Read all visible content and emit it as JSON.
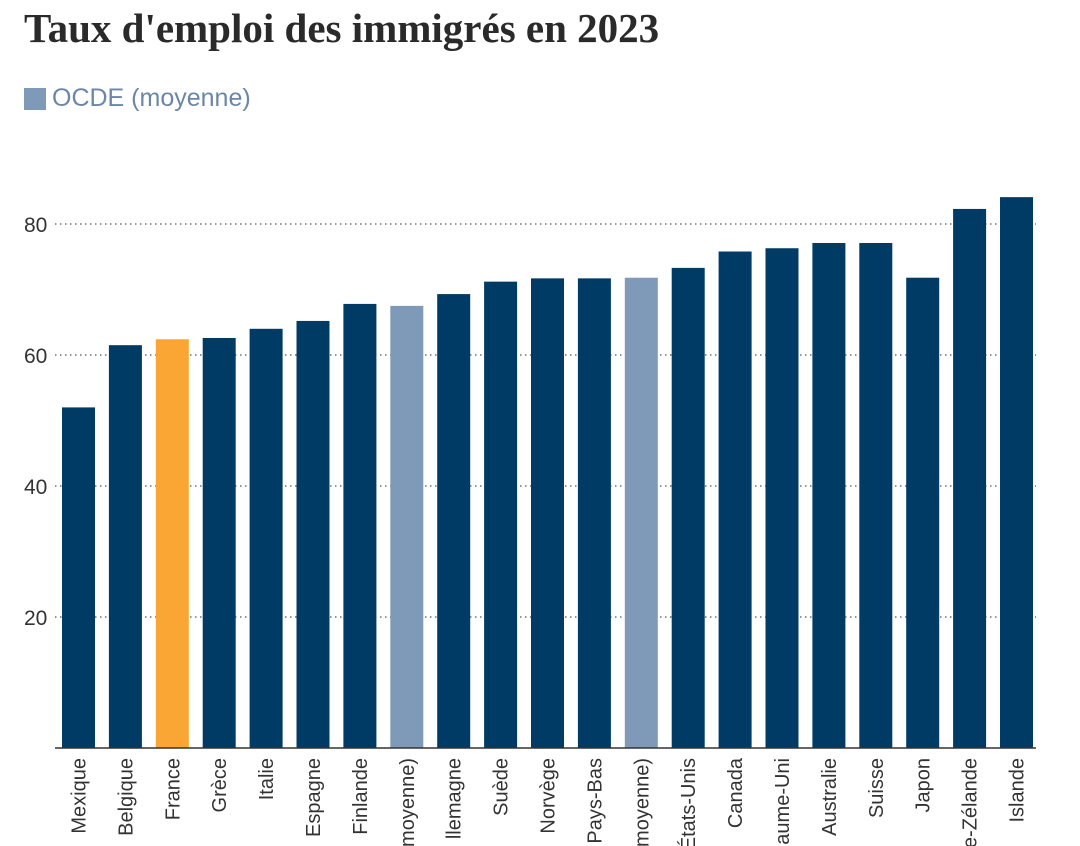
{
  "colors": {
    "bar": "#003b66",
    "france": "#faa634",
    "average": "#7f9ab8",
    "legend_text": "#6b86a8",
    "grid": "#555555",
    "axis_text": "#333333"
  },
  "chart_data": {
    "type": "bar",
    "title": "Taux d'emploi des immigrés en 2023",
    "legend": [
      {
        "label": "OCDE (moyenne)",
        "color": "#7f9ab8"
      }
    ],
    "legend_position": "top-left",
    "xlabel": "",
    "ylabel": "",
    "ylim": [
      0,
      84
    ],
    "yticks": [
      20,
      40,
      60,
      80
    ],
    "grid": "horizontal dotted",
    "bars": [
      {
        "category": "Mexique",
        "value": 52,
        "highlight": "normal"
      },
      {
        "category": "Belgique",
        "value": 61.5,
        "highlight": "normal"
      },
      {
        "category": "France",
        "value": 62.4,
        "highlight": "france"
      },
      {
        "category": "Grèce",
        "value": 62.6,
        "highlight": "normal"
      },
      {
        "category": "Italie",
        "value": 64,
        "highlight": "normal"
      },
      {
        "category": "Espagne",
        "value": 65.2,
        "highlight": "normal"
      },
      {
        "category": "Finlande",
        "value": 67.8,
        "highlight": "normal"
      },
      {
        "category": "(moyenne)",
        "value": 67.5,
        "highlight": "average"
      },
      {
        "category": "llemagne",
        "value": 69.3,
        "highlight": "normal"
      },
      {
        "category": "Suède",
        "value": 71.2,
        "highlight": "normal"
      },
      {
        "category": "Norvège",
        "value": 71.7,
        "highlight": "normal"
      },
      {
        "category": "Pays-Bas",
        "value": 71.7,
        "highlight": "normal"
      },
      {
        "category": "(moyenne)",
        "value": 71.8,
        "highlight": "average"
      },
      {
        "category": "États-Unis",
        "value": 73.3,
        "highlight": "normal"
      },
      {
        "category": "Canada",
        "value": 75.8,
        "highlight": "normal"
      },
      {
        "category": "aume-Uni",
        "value": 76.3,
        "highlight": "normal"
      },
      {
        "category": "Australie",
        "value": 77.1,
        "highlight": "normal"
      },
      {
        "category": "Suisse",
        "value": 77.1,
        "highlight": "normal"
      },
      {
        "category": "Japon",
        "value": 71.8,
        "highlight": "normal"
      },
      {
        "category": "e-Zélande",
        "value": 82.3,
        "highlight": "normal"
      },
      {
        "category": "Islande",
        "value": 84.1,
        "highlight": "normal"
      }
    ]
  }
}
